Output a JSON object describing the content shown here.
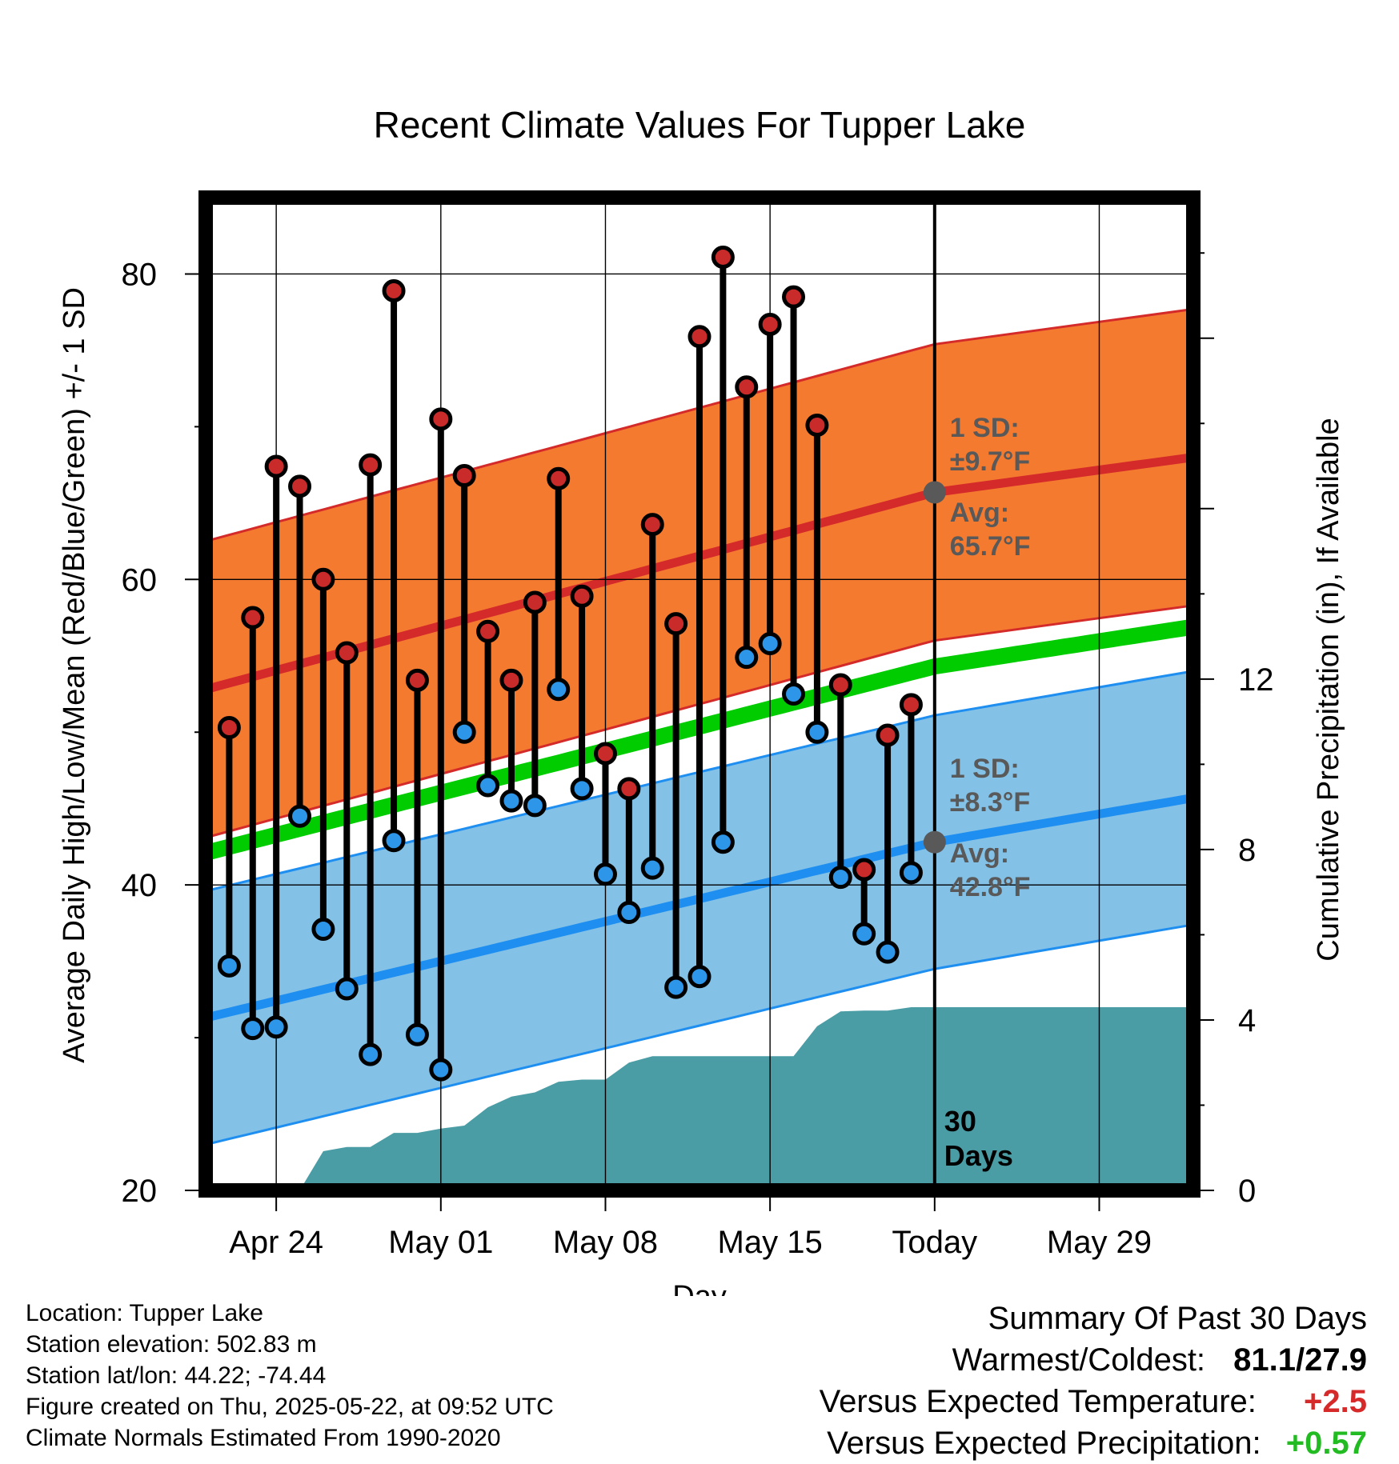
{
  "chart_data": {
    "type": "line",
    "title": "Recent Climate Values For Tupper Lake",
    "xlabel": "Day",
    "ylabel": "Average Daily High/Low/Mean (Red/Blue/Green) +/- 1 SD",
    "y2label": "Cumulative Precipitation (in), If Available",
    "ylim": [
      20,
      85
    ],
    "y2lim": [
      0,
      23.3
    ],
    "yticks": [
      20,
      40,
      60,
      80
    ],
    "y2ticks": [
      0,
      4,
      8,
      12
    ],
    "xrange": [
      "2025-04-21",
      "2025-06-02"
    ],
    "xticks": [
      {
        "date": "2025-04-24",
        "label": "Apr 24"
      },
      {
        "date": "2025-05-01",
        "label": "May 01"
      },
      {
        "date": "2025-05-08",
        "label": "May 08"
      },
      {
        "date": "2025-05-15",
        "label": "May 15"
      },
      {
        "date": "2025-05-22",
        "label": "Today"
      },
      {
        "date": "2025-05-29",
        "label": "May 29"
      }
    ],
    "grid": true,
    "today": "2025-05-22",
    "days_label": "30\nDays",
    "dates": [
      "2025-04-22",
      "2025-04-23",
      "2025-04-24",
      "2025-04-25",
      "2025-04-26",
      "2025-04-27",
      "2025-04-28",
      "2025-04-29",
      "2025-04-30",
      "2025-05-01",
      "2025-05-02",
      "2025-05-03",
      "2025-05-04",
      "2025-05-05",
      "2025-05-06",
      "2025-05-07",
      "2025-05-08",
      "2025-05-09",
      "2025-05-10",
      "2025-05-11",
      "2025-05-12",
      "2025-05-13",
      "2025-05-14",
      "2025-05-15",
      "2025-05-16",
      "2025-05-17",
      "2025-05-18",
      "2025-05-19",
      "2025-05-20",
      "2025-05-21"
    ],
    "daily_high": [
      50.3,
      57.5,
      67.4,
      66.1,
      60.0,
      55.2,
      67.5,
      78.9,
      53.4,
      70.5,
      66.8,
      56.6,
      53.4,
      58.5,
      66.6,
      58.9,
      48.6,
      46.3,
      63.6,
      57.1,
      75.9,
      81.1,
      72.6,
      76.7,
      78.5,
      70.1,
      53.1,
      41.0,
      49.8,
      51.8
    ],
    "daily_low": [
      34.7,
      30.6,
      30.7,
      44.5,
      37.1,
      33.2,
      28.9,
      42.9,
      30.2,
      27.9,
      50.0,
      46.5,
      45.5,
      45.2,
      52.8,
      46.3,
      40.7,
      38.2,
      41.1,
      33.3,
      34.0,
      42.8,
      54.9,
      55.8,
      52.5,
      50.0,
      40.5,
      36.8,
      35.6,
      40.8
    ],
    "normals": {
      "dates": [
        "2025-04-21",
        "2025-05-22",
        "2025-06-02"
      ],
      "high_avg": [
        52.8,
        65.7,
        68.0
      ],
      "high_sd": 9.7,
      "low_avg": [
        31.3,
        42.8,
        45.7
      ],
      "low_sd": 8.3,
      "mean_avg": [
        42.1,
        54.3,
        56.9
      ]
    },
    "normal_high_label": {
      "sd": "1 SD:",
      "sd_value": "±9.7°F",
      "avg": "Avg:",
      "avg_value": "65.7°F"
    },
    "normal_low_label": {
      "sd": "1 SD:",
      "sd_value": "±8.3°F",
      "avg": "Avg:",
      "avg_value": "42.8°F"
    },
    "precip_cumulative": [
      {
        "date": "2025-04-22",
        "value": 0
      },
      {
        "date": "2025-04-23",
        "value": 0
      },
      {
        "date": "2025-04-24",
        "value": 0
      },
      {
        "date": "2025-04-25",
        "value": 0
      },
      {
        "date": "2025-04-26",
        "value": 0.92
      },
      {
        "date": "2025-04-27",
        "value": 1.02
      },
      {
        "date": "2025-04-28",
        "value": 1.02
      },
      {
        "date": "2025-04-29",
        "value": 1.35
      },
      {
        "date": "2025-04-30",
        "value": 1.35
      },
      {
        "date": "2025-05-01",
        "value": 1.45
      },
      {
        "date": "2025-05-02",
        "value": 1.52
      },
      {
        "date": "2025-05-03",
        "value": 1.95
      },
      {
        "date": "2025-05-04",
        "value": 2.2
      },
      {
        "date": "2025-05-05",
        "value": 2.3
      },
      {
        "date": "2025-05-06",
        "value": 2.55
      },
      {
        "date": "2025-05-07",
        "value": 2.6
      },
      {
        "date": "2025-05-08",
        "value": 2.6
      },
      {
        "date": "2025-05-09",
        "value": 3.0
      },
      {
        "date": "2025-05-10",
        "value": 3.15
      },
      {
        "date": "2025-05-11",
        "value": 3.15
      },
      {
        "date": "2025-05-12",
        "value": 3.15
      },
      {
        "date": "2025-05-13",
        "value": 3.15
      },
      {
        "date": "2025-05-14",
        "value": 3.15
      },
      {
        "date": "2025-05-15",
        "value": 3.15
      },
      {
        "date": "2025-05-16",
        "value": 3.15
      },
      {
        "date": "2025-05-17",
        "value": 3.85
      },
      {
        "date": "2025-05-18",
        "value": 4.2
      },
      {
        "date": "2025-05-19",
        "value": 4.22
      },
      {
        "date": "2025-05-20",
        "value": 4.22
      },
      {
        "date": "2025-05-21",
        "value": 4.3
      },
      {
        "date": "2025-06-02",
        "value": 4.3
      }
    ]
  },
  "colors": {
    "high_band": "#f47a30",
    "high_line": "#d42a2a",
    "low_band": "#83c1e7",
    "low_line": "#1e8ff0",
    "mean_line": "#00cc00",
    "precip": "#4a9ca5",
    "high_dot": "#c92a2a",
    "low_dot": "#2e96e8",
    "avg_dot": "#595959",
    "warm_value": "#d62a2a",
    "precip_value": "#22bb22"
  },
  "info": {
    "location": "Location: Tupper Lake",
    "elevation": "Station elevation: 502.83 m",
    "latlon": "Station lat/lon: 44.22; -74.44",
    "created": "Figure created on Thu, 2025-05-22, at 09:52 UTC",
    "normals": "Climate Normals Estimated From 1990-2020"
  },
  "summary": {
    "title": "Summary Of Past 30 Days",
    "extremes_label": "Warmest/Coldest:",
    "extremes_value": "81.1/27.9",
    "temp_label": "Versus Expected Temperature:",
    "temp_value": "+2.5",
    "precip_label": "Versus Expected Precipitation:",
    "precip_value": "+0.57"
  }
}
